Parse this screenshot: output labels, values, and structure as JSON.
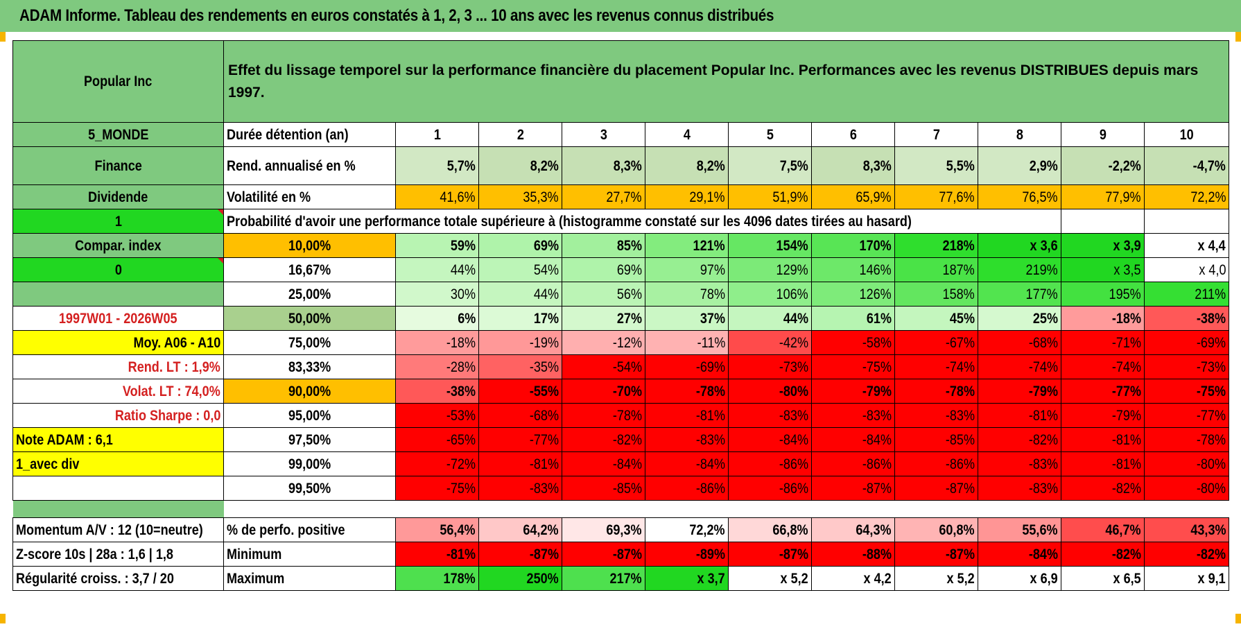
{
  "title": "ADAM Informe. Tableau des rendements en euros constatés à 1, 2, 3 ... 10 ans avec les revenus connus distribués",
  "header": {
    "asset_name": "Popular Inc",
    "description": "Effet du lissage temporel sur la performance financière du placement Popular Inc. Performances avec les revenus DISTRIBUES depuis mars 1997."
  },
  "left_panel": {
    "region": "5_MONDE",
    "sector": "Finance",
    "income_type": "Dividende",
    "flag1": "1",
    "compar_index": "Compar. index",
    "flag2": "0",
    "period": "1997W01 - 2026W05",
    "moy": "Moy. A06 - A10",
    "rend_lt": "Rend. LT :   1,9%",
    "volat_lt": "Volat. LT :   74,0%",
    "sharpe": "Ratio Sharpe :    0,0",
    "note": "Note ADAM : 6,1",
    "div": "1_avec div",
    "momentum": "Momentum A/V : 12 (10=neutre)",
    "zscore": "Z-score 10s | 28a : 1,6 | 1,8",
    "regularite": "Régularité croiss. : 3,7 / 20"
  },
  "durations_label": "Durée détention (an)",
  "durations": [
    "1",
    "2",
    "3",
    "4",
    "5",
    "6",
    "7",
    "8",
    "9",
    "10"
  ],
  "rend_label": "Rend. annualisé en %",
  "rend": [
    "5,7%",
    "8,2%",
    "8,3%",
    "8,2%",
    "7,5%",
    "8,3%",
    "5,5%",
    "2,9%",
    "-2,2%",
    "-4,7%"
  ],
  "vol_label": "Volatilité en %",
  "vol": [
    "41,6%",
    "35,3%",
    "27,7%",
    "29,1%",
    "51,9%",
    "65,9%",
    "77,6%",
    "76,5%",
    "77,9%",
    "72,2%"
  ],
  "prob_label": "Probabilité d'avoir une performance totale supérieure à (histogramme constaté sur les 4096 dates tirées au hasard)",
  "quantiles": [
    {
      "label": "10,00%",
      "values": [
        "59%",
        "69%",
        "85%",
        "121%",
        "154%",
        "170%",
        "218%",
        "x 3,6",
        "x 3,9",
        "x 4,4"
      ]
    },
    {
      "label": "16,67%",
      "values": [
        "44%",
        "54%",
        "69%",
        "97%",
        "129%",
        "146%",
        "187%",
        "219%",
        "x 3,5",
        "x 4,0"
      ]
    },
    {
      "label": "25,00%",
      "values": [
        "30%",
        "44%",
        "56%",
        "78%",
        "106%",
        "126%",
        "158%",
        "177%",
        "195%",
        "211%"
      ]
    },
    {
      "label": "50,00%",
      "values": [
        "6%",
        "17%",
        "27%",
        "37%",
        "44%",
        "61%",
        "45%",
        "25%",
        "-18%",
        "-38%"
      ]
    },
    {
      "label": "75,00%",
      "values": [
        "-18%",
        "-19%",
        "-12%",
        "-11%",
        "-42%",
        "-58%",
        "-67%",
        "-68%",
        "-71%",
        "-69%"
      ]
    },
    {
      "label": "83,33%",
      "values": [
        "-28%",
        "-35%",
        "-54%",
        "-69%",
        "-73%",
        "-75%",
        "-74%",
        "-74%",
        "-74%",
        "-73%"
      ]
    },
    {
      "label": "90,00%",
      "values": [
        "-38%",
        "-55%",
        "-70%",
        "-78%",
        "-80%",
        "-79%",
        "-78%",
        "-79%",
        "-77%",
        "-75%"
      ]
    },
    {
      "label": "95,00%",
      "values": [
        "-53%",
        "-68%",
        "-78%",
        "-81%",
        "-83%",
        "-83%",
        "-83%",
        "-81%",
        "-79%",
        "-77%"
      ]
    },
    {
      "label": "97,50%",
      "values": [
        "-65%",
        "-77%",
        "-82%",
        "-83%",
        "-84%",
        "-84%",
        "-85%",
        "-82%",
        "-81%",
        "-78%"
      ]
    },
    {
      "label": "99,00%",
      "values": [
        "-72%",
        "-81%",
        "-84%",
        "-84%",
        "-86%",
        "-86%",
        "-86%",
        "-83%",
        "-81%",
        "-80%"
      ]
    },
    {
      "label": "99,50%",
      "values": [
        "-75%",
        "-83%",
        "-85%",
        "-86%",
        "-86%",
        "-87%",
        "-87%",
        "-83%",
        "-82%",
        "-80%"
      ]
    }
  ],
  "pos_label": "% de perfo. positive",
  "pos": [
    "56,4%",
    "64,2%",
    "69,3%",
    "72,2%",
    "66,8%",
    "64,3%",
    "60,8%",
    "55,6%",
    "46,7%",
    "43,3%"
  ],
  "min_label": "Minimum",
  "min": [
    "-81%",
    "-87%",
    "-87%",
    "-89%",
    "-87%",
    "-88%",
    "-87%",
    "-84%",
    "-82%",
    "-82%"
  ],
  "max_label": "Maximum",
  "max": [
    "178%",
    "250%",
    "217%",
    "x 3,7",
    "x 5,2",
    "x 4,2",
    "x 5,2",
    "x 6,9",
    "x 6,5",
    "x 9,1"
  ],
  "colors": {
    "header_green": "#7fc97f",
    "bright_green": "#21d721",
    "yellow": "#ffff00",
    "orange": "#ffbf00",
    "loss_red": "#ff0000",
    "label_red": "#d42020"
  }
}
